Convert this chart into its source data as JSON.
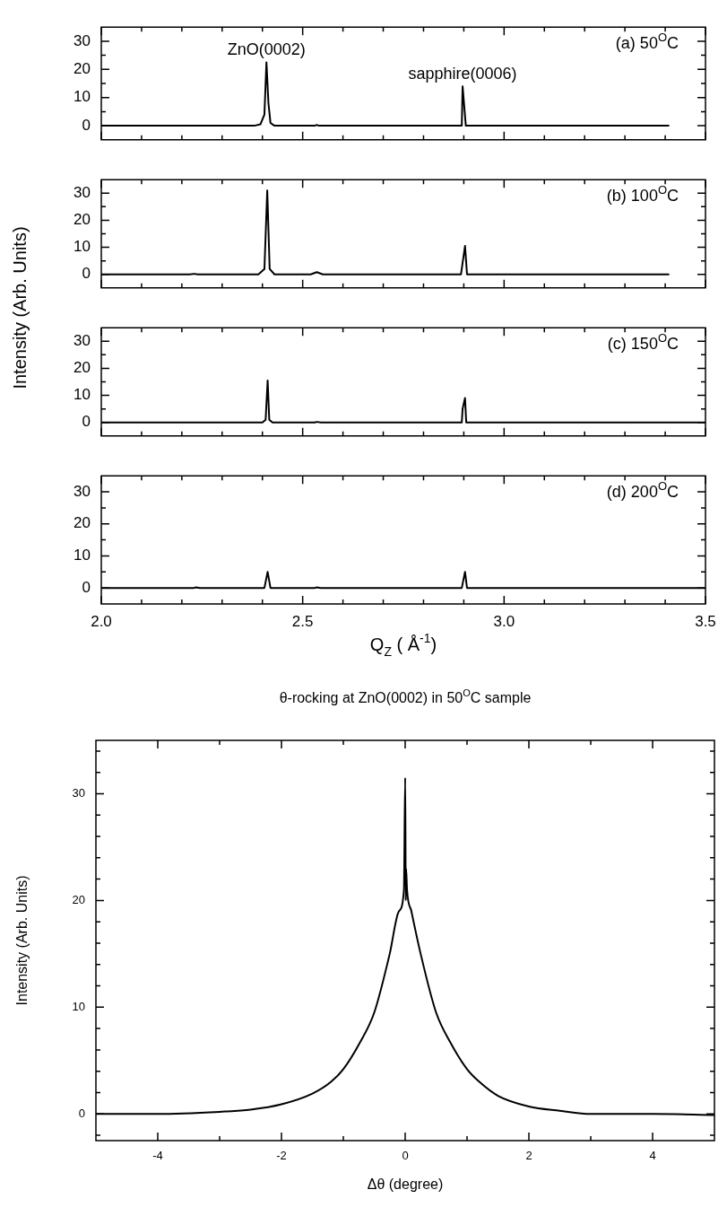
{
  "chart_data": [
    {
      "type": "line",
      "color": "#000000",
      "marker": "none",
      "tick_labels": "y",
      "xlim": [
        2,
        3.5
      ],
      "ylim": [
        -5,
        35
      ],
      "x": [
        2.0,
        2.38,
        2.395,
        2.405,
        2.41,
        2.415,
        2.42,
        2.43,
        2.53,
        2.535,
        2.54,
        2.895,
        2.897,
        2.905,
        3.41
      ],
      "values": [
        0,
        0,
        0.5,
        4,
        22.5,
        8,
        1,
        0,
        0,
        0.3,
        0,
        0,
        14,
        0,
        0
      ],
      "xticks": [
        2,
        2.5,
        3,
        3.5,
        {
          "value": 2.1,
          "label": null
        },
        {
          "value": 2.2,
          "label": null
        },
        {
          "value": 2.3,
          "label": null
        },
        {
          "value": 2.4,
          "label": null
        },
        {
          "value": 2.6,
          "label": null
        },
        {
          "value": 2.7,
          "label": null
        },
        {
          "value": 2.8,
          "label": null
        },
        {
          "value": 2.9,
          "label": null
        },
        {
          "value": 3.1,
          "label": null
        },
        {
          "value": 3.2,
          "label": null
        },
        {
          "value": 3.3,
          "label": null
        },
        {
          "value": 3.4,
          "label": null
        }
      ],
      "yticks": [
        0,
        10,
        20,
        30,
        {
          "value": 5,
          "label": null
        },
        {
          "value": 15,
          "label": null
        },
        {
          "value": 25,
          "label": null
        }
      ],
      "annotations": [
        "(a) 50$^{O}$C",
        {
          "text": "ZnO(0002)",
          "x": 2.41,
          "y": 22.5
        },
        {
          "text": "sapphire(0006)",
          "x": 2.897,
          "y": 14
        }
      ]
    },
    {
      "type": "line",
      "color": "#000000",
      "marker": "none",
      "tick_labels": "y",
      "xlim": [
        2,
        3.5
      ],
      "ylim": [
        -5,
        35
      ],
      "ylabel": "Intensity (Arb. Units)",
      "x": [
        2.0,
        2.22,
        2.23,
        2.24,
        2.39,
        2.405,
        2.412,
        2.418,
        2.43,
        2.52,
        2.535,
        2.55,
        2.893,
        2.903,
        2.908,
        3.41
      ],
      "values": [
        0,
        0,
        0.2,
        0,
        0,
        2,
        31,
        2,
        0,
        0,
        0.8,
        0,
        0,
        10.5,
        0,
        0
      ],
      "xticks": [
        2,
        2.5,
        3,
        3.5,
        {
          "value": 2.1,
          "label": null
        },
        {
          "value": 2.2,
          "label": null
        },
        {
          "value": 2.3,
          "label": null
        },
        {
          "value": 2.4,
          "label": null
        },
        {
          "value": 2.6,
          "label": null
        },
        {
          "value": 2.7,
          "label": null
        },
        {
          "value": 2.8,
          "label": null
        },
        {
          "value": 2.9,
          "label": null
        },
        {
          "value": 3.1,
          "label": null
        },
        {
          "value": 3.2,
          "label": null
        },
        {
          "value": 3.3,
          "label": null
        },
        {
          "value": 3.4,
          "label": null
        }
      ],
      "yticks": [
        0,
        10,
        20,
        30,
        {
          "value": 5,
          "label": null
        },
        {
          "value": 15,
          "label": null
        },
        {
          "value": 25,
          "label": null
        }
      ],
      "annotations": [
        "(b) 100$^{O}$C"
      ]
    },
    {
      "type": "line",
      "color": "#000000",
      "marker": "none",
      "tick_labels": "y",
      "xlim": [
        2,
        3.5
      ],
      "ylim": [
        -5,
        35
      ],
      "x": [
        2.0,
        2.4,
        2.408,
        2.413,
        2.417,
        2.425,
        2.53,
        2.535,
        2.545,
        2.895,
        2.897,
        2.903,
        2.906,
        3.5
      ],
      "values": [
        0,
        0,
        1,
        15.5,
        1,
        0,
        0,
        0.2,
        0,
        0,
        5,
        9,
        0,
        0
      ],
      "xticks": [
        2,
        2.5,
        3,
        3.5,
        {
          "value": 2.1,
          "label": null
        },
        {
          "value": 2.2,
          "label": null
        },
        {
          "value": 2.3,
          "label": null
        },
        {
          "value": 2.4,
          "label": null
        },
        {
          "value": 2.6,
          "label": null
        },
        {
          "value": 2.7,
          "label": null
        },
        {
          "value": 2.8,
          "label": null
        },
        {
          "value": 2.9,
          "label": null
        },
        {
          "value": 3.1,
          "label": null
        },
        {
          "value": 3.2,
          "label": null
        },
        {
          "value": 3.3,
          "label": null
        },
        {
          "value": 3.4,
          "label": null
        }
      ],
      "yticks": [
        0,
        10,
        20,
        30,
        {
          "value": 5,
          "label": null
        },
        {
          "value": 15,
          "label": null
        },
        {
          "value": 25,
          "label": null
        }
      ],
      "annotations": [
        "(c) 150$^{O}$C"
      ]
    },
    {
      "type": "line",
      "color": "#000000",
      "marker": "none",
      "xlim": [
        2,
        3.5
      ],
      "ylim": [
        -5,
        35
      ],
      "xlabel": "Q$_{Z}$ ( Å$^{-1}$)",
      "x": [
        2.0,
        2.23,
        2.235,
        2.245,
        2.405,
        2.413,
        2.42,
        2.53,
        2.535,
        2.545,
        2.895,
        2.903,
        2.908,
        3.5
      ],
      "values": [
        0,
        0,
        0.2,
        0,
        0,
        5,
        0,
        0,
        0.2,
        0,
        0,
        5,
        0,
        0
      ],
      "xticks": [
        {
          "value": 2,
          "label": "2.0"
        },
        {
          "value": 2.5,
          "label": "2.5"
        },
        {
          "value": 3,
          "label": "3.0"
        },
        {
          "value": 3.5,
          "label": "3.5"
        },
        {
          "value": 2.1,
          "label": null
        },
        {
          "value": 2.2,
          "label": null
        },
        {
          "value": 2.3,
          "label": null
        },
        {
          "value": 2.4,
          "label": null
        },
        {
          "value": 2.6,
          "label": null
        },
        {
          "value": 2.7,
          "label": null
        },
        {
          "value": 2.8,
          "label": null
        },
        {
          "value": 2.9,
          "label": null
        },
        {
          "value": 3.1,
          "label": null
        },
        {
          "value": 3.2,
          "label": null
        },
        {
          "value": 3.3,
          "label": null
        },
        {
          "value": 3.4,
          "label": null
        }
      ],
      "yticks": [
        0,
        10,
        20,
        30,
        {
          "value": 5,
          "label": null
        },
        {
          "value": 15,
          "label": null
        },
        {
          "value": 25,
          "label": null
        }
      ],
      "annotations": [
        "(d) 200$^{O}$C"
      ]
    },
    {
      "type": "line",
      "color": "#000000",
      "marker": "none",
      "xlim": [
        -5,
        5
      ],
      "ylim": [
        -2.5,
        35
      ],
      "title": "θ-rocking at ZnO(0002) in 50$^{O}$C sample",
      "xlabel": "Δθ (degree)",
      "ylabel": "Intensity (Arb. Units)",
      "x": [
        -5,
        -4,
        -3,
        -2.5,
        -2,
        -1.5,
        -1.2,
        -1,
        -0.75,
        -0.5,
        -0.25,
        -0.1,
        -0.02,
        0,
        0.01,
        0.015,
        0.03,
        0.1,
        0.25,
        0.5,
        0.75,
        1,
        1.2,
        1.5,
        2,
        2.5,
        3,
        4,
        5
      ],
      "values": [
        0,
        0,
        0.2,
        0.4,
        0.9,
        1.9,
        3,
        4.2,
        6.5,
        9.5,
        15,
        19,
        21,
        31.5,
        20,
        23,
        21,
        19,
        15,
        9.5,
        6.5,
        4.2,
        3,
        1.7,
        0.7,
        0.3,
        0,
        0,
        -0.1
      ],
      "xticks": [
        -4,
        -2,
        0,
        2,
        4,
        {
          "value": -3,
          "label": null
        },
        {
          "value": -1,
          "label": null
        },
        {
          "value": 1,
          "label": null
        },
        {
          "value": 3,
          "label": null
        }
      ],
      "yticks": [
        0,
        10,
        20,
        30,
        {
          "value": -2,
          "label": null
        },
        {
          "value": 2,
          "label": null
        },
        {
          "value": 4,
          "label": null
        },
        {
          "value": 6,
          "label": null
        },
        {
          "value": 8,
          "label": null
        },
        {
          "value": 12,
          "label": null
        },
        {
          "value": 14,
          "label": null
        },
        {
          "value": 16,
          "label": null
        },
        {
          "value": 18,
          "label": null
        },
        {
          "value": 22,
          "label": null
        },
        {
          "value": 24,
          "label": null
        },
        {
          "value": 26,
          "label": null
        },
        {
          "value": 28,
          "label": null
        },
        {
          "value": 32,
          "label": null
        },
        {
          "value": 34,
          "label": null
        }
      ]
    }
  ]
}
